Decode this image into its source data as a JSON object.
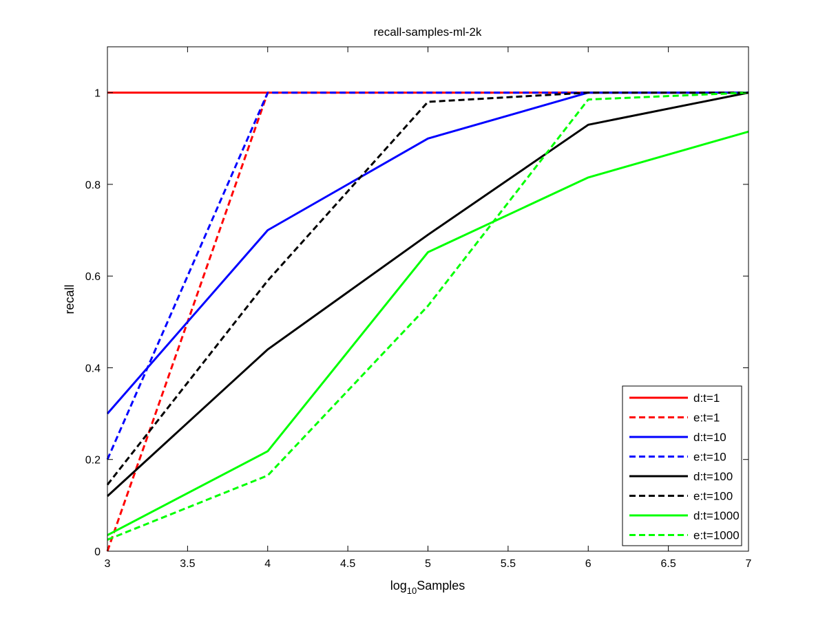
{
  "chart_data": {
    "type": "line",
    "title": "recall-samples-ml-2k",
    "xlabel": {
      "prefix": "log",
      "subscript": "10",
      "suffix": "Samples"
    },
    "ylabel": "recall",
    "xlim": [
      3,
      7
    ],
    "ylim": [
      0,
      1.1
    ],
    "xticks": [
      3,
      3.5,
      4,
      4.5,
      5,
      5.5,
      6,
      6.5,
      7
    ],
    "xtick_labels": [
      "3",
      "3.5",
      "4",
      "4.5",
      "5",
      "5.5",
      "6",
      "6.5",
      "7"
    ],
    "yticks": [
      0,
      0.2,
      0.4,
      0.6,
      0.8,
      1
    ],
    "ytick_labels": [
      "0",
      "0.2",
      "0.4",
      "0.6",
      "0.8",
      "1"
    ],
    "grid": false,
    "legend_position": "bottom-right",
    "x": [
      3,
      4,
      5,
      6,
      7
    ],
    "series": [
      {
        "name": "d:t=1",
        "color": "#ff0000",
        "dash": "solid",
        "values": [
          1,
          1,
          1,
          1,
          1
        ]
      },
      {
        "name": "e:t=1",
        "color": "#ff0000",
        "dash": "dashed",
        "values": [
          0,
          1,
          1,
          1,
          1
        ]
      },
      {
        "name": "d:t=10",
        "color": "#0000ff",
        "dash": "solid",
        "values": [
          0.3,
          0.7,
          0.9,
          1,
          1
        ]
      },
      {
        "name": "e:t=10",
        "color": "#0000ff",
        "dash": "dashed",
        "values": [
          0.2,
          1,
          1,
          1,
          1
        ]
      },
      {
        "name": "d:t=100",
        "color": "#000000",
        "dash": "solid",
        "values": [
          0.12,
          0.44,
          0.69,
          0.93,
          1
        ]
      },
      {
        "name": "e:t=100",
        "color": "#000000",
        "dash": "dashed",
        "values": [
          0.145,
          0.59,
          0.98,
          1,
          1
        ]
      },
      {
        "name": "d:t=1000",
        "color": "#00ff00",
        "dash": "solid",
        "values": [
          0.035,
          0.218,
          0.652,
          0.815,
          0.915
        ]
      },
      {
        "name": "e:t=1000",
        "color": "#00ff00",
        "dash": "dashed",
        "values": [
          0.025,
          0.165,
          0.535,
          0.985,
          1
        ]
      }
    ]
  }
}
